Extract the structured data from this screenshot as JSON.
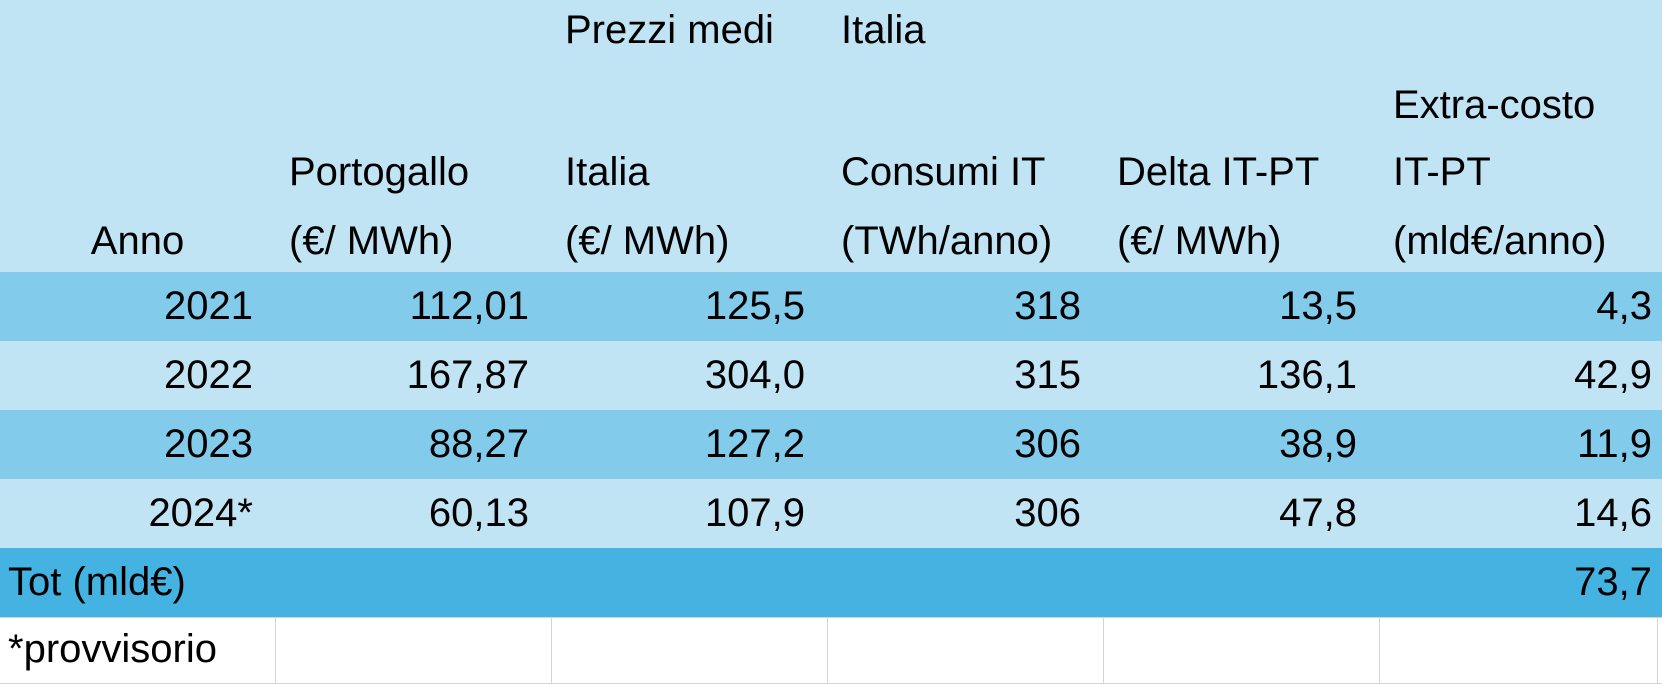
{
  "header": {
    "top_labels": [
      "Prezzi medi",
      "Italia"
    ],
    "columns": [
      {
        "lines": [
          "Anno"
        ]
      },
      {
        "lines": [
          "Portogallo",
          "(€/ MWh)"
        ]
      },
      {
        "lines": [
          "Italia",
          "(€/ MWh)"
        ]
      },
      {
        "lines": [
          "Consumi IT",
          "(TWh/anno)"
        ]
      },
      {
        "lines": [
          "Delta IT-PT",
          "(€/ MWh)"
        ]
      },
      {
        "lines": [
          "Extra-costo",
          "IT-PT",
          "(mld€/anno)"
        ]
      }
    ]
  },
  "table": {
    "rows": [
      [
        "2021",
        "112,01",
        "125,5",
        "318",
        "13,5",
        "4,3"
      ],
      [
        "2022",
        "167,87",
        "304,0",
        "315",
        "136,1",
        "42,9"
      ],
      [
        "2023",
        "88,27",
        "127,2",
        "306",
        "38,9",
        "11,9"
      ],
      [
        "2024*",
        "60,13",
        "107,9",
        "306",
        "47,8",
        "14,6"
      ]
    ]
  },
  "total": {
    "label": "Tot (mld€)",
    "value": "73,7"
  },
  "footnote": "*provvisorio"
}
